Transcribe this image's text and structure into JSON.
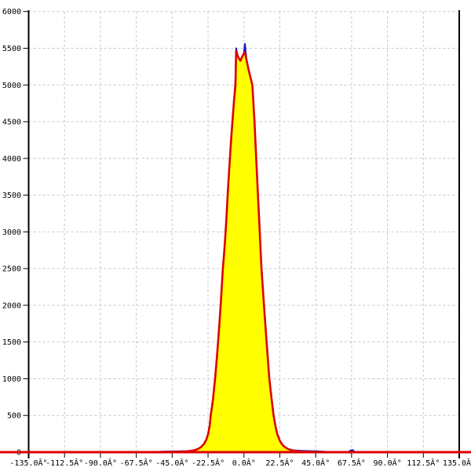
{
  "chart_data": {
    "type": "area",
    "title": "",
    "xlim": [
      -135,
      135
    ],
    "ylim": [
      0,
      6000
    ],
    "grid": "dashed",
    "legend": "none",
    "x_ticks": [
      {
        "value": -135,
        "label": "-135.0Â°"
      },
      {
        "value": -112.5,
        "label": "-112.5Â°"
      },
      {
        "value": -90,
        "label": "-90.0Â°"
      },
      {
        "value": -67.5,
        "label": "-67.5Â°"
      },
      {
        "value": -45,
        "label": "-45.0Â°"
      },
      {
        "value": -22.5,
        "label": "-22.5Â°"
      },
      {
        "value": 0,
        "label": "0.0Â°"
      },
      {
        "value": 22.5,
        "label": "22.5Â°"
      },
      {
        "value": 45,
        "label": "45.0Â°"
      },
      {
        "value": 67.5,
        "label": "67.5Â°"
      },
      {
        "value": 90,
        "label": "90.0Â°"
      },
      {
        "value": 112.5,
        "label": "112.5Â°"
      },
      {
        "value": 135,
        "label": "135.0Â°"
      }
    ],
    "y_ticks": [
      {
        "value": 0,
        "label": "0"
      },
      {
        "value": 500,
        "label": "500"
      },
      {
        "value": 1000,
        "label": "1000"
      },
      {
        "value": 1500,
        "label": "1500"
      },
      {
        "value": 2000,
        "label": "2000"
      },
      {
        "value": 2500,
        "label": "2500"
      },
      {
        "value": 3000,
        "label": "3000"
      },
      {
        "value": 3500,
        "label": "3500"
      },
      {
        "value": 4000,
        "label": "4000"
      },
      {
        "value": 4500,
        "label": "4500"
      },
      {
        "value": 5000,
        "label": "5000"
      },
      {
        "value": 5500,
        "label": "5500"
      },
      {
        "value": 6000,
        "label": "6000"
      }
    ],
    "colors": {
      "background": "#ffffff",
      "grid": "#c6c6c6",
      "axis": "#000000",
      "text": "#000000",
      "blue_line": "#1515c8",
      "red_line": "#dd0000",
      "yellow_fill": "#ffff00"
    },
    "series": [
      {
        "name": "blue-distribution-line",
        "color": "#1515c8",
        "fill": null,
        "peak": {
          "x_deg": 0.6,
          "value": 5560
        },
        "points": [
          [
            -135,
            0
          ],
          [
            -112.5,
            0
          ],
          [
            -90,
            0
          ],
          [
            -70,
            0
          ],
          [
            -62,
            1
          ],
          [
            -56,
            3
          ],
          [
            -51,
            7
          ],
          [
            -46,
            10
          ],
          [
            -41,
            12
          ],
          [
            -36,
            15
          ],
          [
            -32,
            22
          ],
          [
            -29,
            40
          ],
          [
            -26.8,
            70
          ],
          [
            -25,
            112
          ],
          [
            -23.5,
            172
          ],
          [
            -22.4,
            246
          ],
          [
            -21.5,
            356
          ],
          [
            -20.8,
            495
          ],
          [
            -19.4,
            715
          ],
          [
            -18.1,
            995
          ],
          [
            -17.1,
            1245
          ],
          [
            -16.2,
            1495
          ],
          [
            -15.4,
            1745
          ],
          [
            -14.6,
            1995
          ],
          [
            -13.9,
            2245
          ],
          [
            -13.2,
            2495
          ],
          [
            -12.3,
            2745
          ],
          [
            -11.5,
            2995
          ],
          [
            -10.8,
            3245
          ],
          [
            -10.2,
            3495
          ],
          [
            -9.5,
            3765
          ],
          [
            -8.8,
            3995
          ],
          [
            -8,
            4265
          ],
          [
            -7.2,
            4495
          ],
          [
            -6.2,
            4795
          ],
          [
            -5.4,
            5050
          ],
          [
            -4.9,
            5500
          ],
          [
            -3.6,
            5360
          ],
          [
            -2.2,
            5300
          ],
          [
            -1,
            5360
          ],
          [
            -0.2,
            5390
          ],
          [
            0.6,
            5560
          ],
          [
            1.5,
            5370
          ],
          [
            2.8,
            5200
          ],
          [
            4,
            5100
          ],
          [
            5.3,
            4990
          ],
          [
            6.6,
            4490
          ],
          [
            7.7,
            3990
          ],
          [
            8.8,
            3490
          ],
          [
            9.9,
            2990
          ],
          [
            11,
            2490
          ],
          [
            12.6,
            1990
          ],
          [
            14.2,
            1490
          ],
          [
            15.9,
            990
          ],
          [
            17.2,
            740
          ],
          [
            18.6,
            495
          ],
          [
            19.8,
            345
          ],
          [
            21,
            238
          ],
          [
            22.3,
            162
          ],
          [
            23.6,
            112
          ],
          [
            25.3,
            72
          ],
          [
            27.5,
            44
          ],
          [
            30,
            28
          ],
          [
            33,
            22
          ],
          [
            36,
            18
          ],
          [
            39,
            16
          ],
          [
            42,
            15
          ],
          [
            45,
            13
          ],
          [
            48,
            10
          ],
          [
            51,
            6
          ],
          [
            54,
            3
          ],
          [
            58,
            2
          ],
          [
            62,
            1
          ],
          [
            65.5,
            2
          ],
          [
            66.8,
            24
          ],
          [
            68.2,
            30
          ],
          [
            69.5,
            5
          ],
          [
            71.5,
            1
          ],
          [
            78,
            0
          ],
          [
            90,
            0
          ],
          [
            112.5,
            0
          ],
          [
            135,
            0
          ]
        ]
      },
      {
        "name": "red-fitted-curve-yellow-area",
        "color": "#dd0000",
        "fill": "#ffff00",
        "peak": {
          "x_deg": 0.5,
          "value": 5450
        },
        "points": [
          [
            -135,
            0
          ],
          [
            -112.5,
            0
          ],
          [
            -90,
            0
          ],
          [
            -67.5,
            0
          ],
          [
            -60,
            0
          ],
          [
            -53,
            1
          ],
          [
            -47.5,
            2
          ],
          [
            -42.5,
            4
          ],
          [
            -38,
            8
          ],
          [
            -34.5,
            14
          ],
          [
            -31.5,
            24
          ],
          [
            -29,
            42
          ],
          [
            -26.8,
            72
          ],
          [
            -25,
            115
          ],
          [
            -23.5,
            175
          ],
          [
            -22.4,
            250
          ],
          [
            -21.5,
            360
          ],
          [
            -20.8,
            500
          ],
          [
            -19.4,
            720
          ],
          [
            -18.1,
            1000
          ],
          [
            -17.1,
            1250
          ],
          [
            -16.2,
            1500
          ],
          [
            -15.4,
            1750
          ],
          [
            -14.6,
            2000
          ],
          [
            -13.9,
            2250
          ],
          [
            -13.2,
            2500
          ],
          [
            -12.3,
            2750
          ],
          [
            -11.5,
            3000
          ],
          [
            -10.8,
            3250
          ],
          [
            -10.2,
            3500
          ],
          [
            -9.5,
            3770
          ],
          [
            -8.8,
            4000
          ],
          [
            -8,
            4270
          ],
          [
            -7.2,
            4500
          ],
          [
            -6.2,
            4800
          ],
          [
            -5.3,
            5000
          ],
          [
            -4.9,
            5460
          ],
          [
            -3.6,
            5380
          ],
          [
            -2.2,
            5330
          ],
          [
            -1,
            5390
          ],
          [
            0.5,
            5450
          ],
          [
            1.6,
            5340
          ],
          [
            2.8,
            5220
          ],
          [
            4,
            5110
          ],
          [
            5.3,
            5000
          ],
          [
            6.6,
            4500
          ],
          [
            7.7,
            4000
          ],
          [
            8.8,
            3500
          ],
          [
            9.9,
            3000
          ],
          [
            11,
            2500
          ],
          [
            12.6,
            2000
          ],
          [
            14.2,
            1500
          ],
          [
            15.9,
            1000
          ],
          [
            17.2,
            750
          ],
          [
            18.6,
            500
          ],
          [
            19.8,
            350
          ],
          [
            21,
            240
          ],
          [
            22.3,
            165
          ],
          [
            23.6,
            115
          ],
          [
            25.3,
            75
          ],
          [
            27.5,
            45
          ],
          [
            30,
            26
          ],
          [
            33,
            15
          ],
          [
            36.5,
            8
          ],
          [
            41,
            4
          ],
          [
            46,
            2
          ],
          [
            51,
            1
          ],
          [
            58,
            0
          ],
          [
            67.5,
            0
          ],
          [
            90,
            0
          ],
          [
            112.5,
            0
          ],
          [
            135,
            0
          ]
        ]
      }
    ],
    "baseline_note": "red line runs along y=0 across the entire image width"
  }
}
